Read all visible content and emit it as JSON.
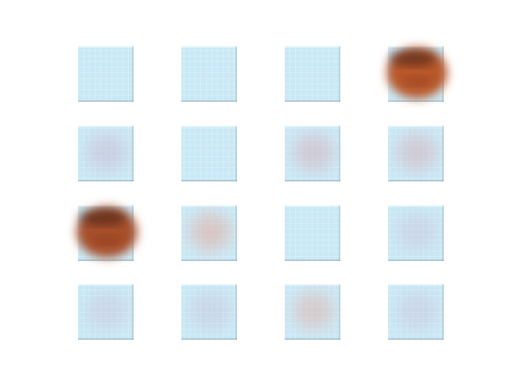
{
  "grid": {
    "rows": 4,
    "cols": 4,
    "tiles": [
      {
        "style": "blue",
        "blob": null,
        "blob_strength": 0.0
      },
      {
        "style": "blue",
        "blob": null,
        "blob_strength": 0.0
      },
      {
        "style": "blue",
        "blob": null,
        "blob_strength": 0.0
      },
      {
        "style": "orange",
        "blob": "#b8582a",
        "blob_strength": 1.0
      },
      {
        "style": "faint-purple",
        "blob": "#c7a3c2",
        "blob_strength": 0.35
      },
      {
        "style": "blue",
        "blob": null,
        "blob_strength": 0.0
      },
      {
        "style": "faint-pink",
        "blob": "#d6a7b0",
        "blob_strength": 0.45
      },
      {
        "style": "faint-pink",
        "blob": "#d6a7b0",
        "blob_strength": 0.45
      },
      {
        "style": "orange",
        "blob": "#a7502a",
        "blob_strength": 1.0
      },
      {
        "style": "faint-pink",
        "blob": "#e2aa9e",
        "blob_strength": 0.55
      },
      {
        "style": "blue",
        "blob": null,
        "blob_strength": 0.0
      },
      {
        "style": "faint-purple",
        "blob": "#c7a3c2",
        "blob_strength": 0.25
      },
      {
        "style": "faint-purple",
        "blob": "#c7a3c2",
        "blob_strength": 0.25
      },
      {
        "style": "faint-purple",
        "blob": "#c7a3c2",
        "blob_strength": 0.25
      },
      {
        "style": "faint-pink",
        "blob": "#e2aa9e",
        "blob_strength": 0.45
      },
      {
        "style": "faint-purple",
        "blob": "#c7a3c2",
        "blob_strength": 0.25
      }
    ]
  },
  "colors": {
    "page_background": "#ffffff",
    "tile_base": "#c9e8f5",
    "tile_grid_line": "#e7f6fc",
    "tile_border_dark": "#7b8f99",
    "tile_edge_light": "#f2fbff"
  }
}
